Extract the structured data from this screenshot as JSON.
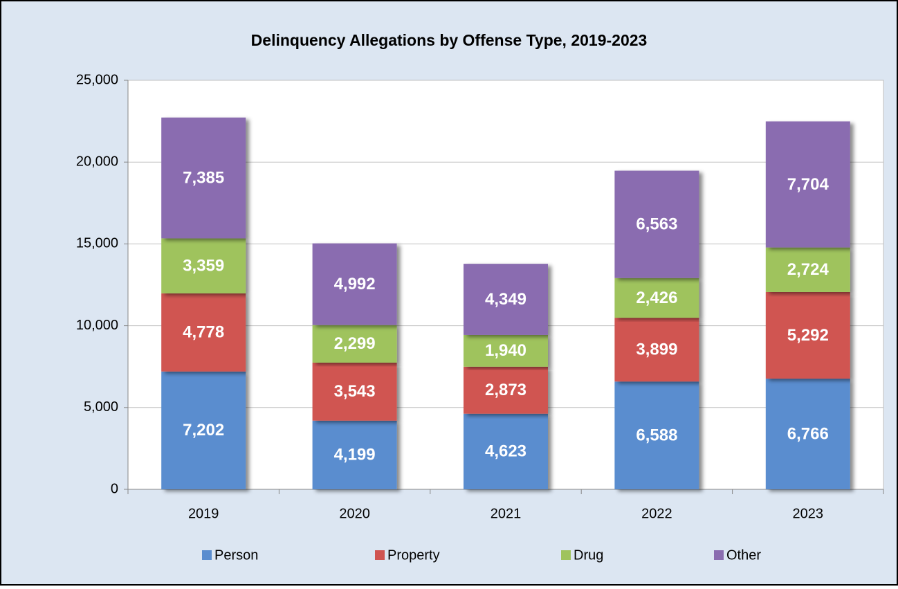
{
  "chart_data": {
    "type": "stacked_bar",
    "title": "Delinquency Allegations by Offense Type, 2019-2023",
    "categories": [
      "2019",
      "2020",
      "2021",
      "2022",
      "2023"
    ],
    "series": [
      {
        "name": "Person",
        "color": "#5a8dcf",
        "values": [
          7202,
          4199,
          4623,
          6588,
          6766
        ],
        "value_labels": [
          "7,202",
          "4,199",
          "4,623",
          "6,588",
          "6,766"
        ]
      },
      {
        "name": "Property",
        "color": "#d05451",
        "values": [
          4778,
          3543,
          2873,
          3899,
          5292
        ],
        "value_labels": [
          "4,778",
          "3,543",
          "2,873",
          "3,899",
          "5,292"
        ]
      },
      {
        "name": "Drug",
        "color": "#9fc35d",
        "values": [
          3359,
          2299,
          1940,
          2426,
          2724
        ],
        "value_labels": [
          "3,359",
          "2,299",
          "1,940",
          "2,426",
          "2,724"
        ]
      },
      {
        "name": "Other",
        "color": "#8a6cb0",
        "values": [
          7385,
          4992,
          4349,
          6563,
          7704
        ],
        "value_labels": [
          "7,385",
          "4,992",
          "4,349",
          "6,563",
          "7,704"
        ]
      }
    ],
    "ylim": [
      0,
      25000
    ],
    "yticks": [
      0,
      {
        "value": 5000,
        "label": "5,000"
      },
      {
        "value": 10000,
        "label": "10,000"
      },
      {
        "value": 15000,
        "label": "15,000"
      },
      {
        "value": 20000,
        "label": "20,000"
      },
      {
        "value": 25000,
        "label": "25,000"
      }
    ],
    "grid": true,
    "legend": "bottom"
  }
}
